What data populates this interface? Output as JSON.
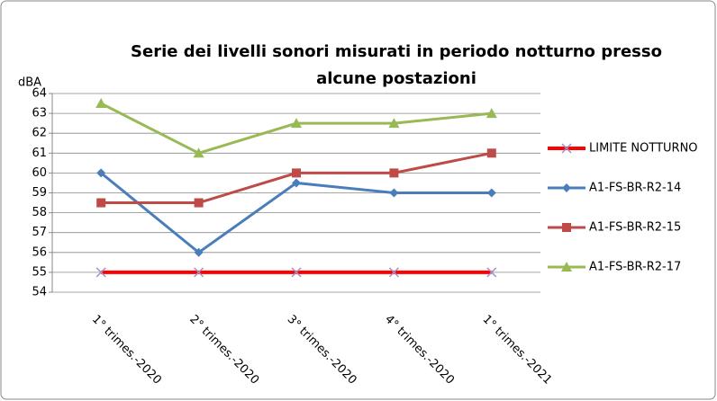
{
  "chart_data": {
    "type": "line",
    "title_lines": [
      "Serie dei livelli sonori misurati in periodo notturno presso",
      "alcune postazioni"
    ],
    "y_label": "dBA",
    "categories": [
      "1° trimes.-2020",
      "2° trimes.-2020",
      "3° trimes.-2020",
      "4° trimes.-2020",
      "1° trimes.-2021"
    ],
    "series": [
      {
        "name": "LIMITE NOTTURNO",
        "color": "#ff0000",
        "marker": "x",
        "marker_color": "#9f8fc7",
        "values": [
          55,
          55,
          55,
          55,
          55
        ]
      },
      {
        "name": "A1-FS-BR-R2-14",
        "color": "#4a7ebb",
        "marker": "diamond",
        "values": [
          60,
          56,
          59.5,
          59,
          59
        ]
      },
      {
        "name": "A1-FS-BR-R2-15",
        "color": "#be4b48",
        "marker": "square",
        "values": [
          58.5,
          58.5,
          60,
          60,
          61
        ]
      },
      {
        "name": "A1-FS-BR-R2-17",
        "color": "#98b954",
        "marker": "triangle",
        "values": [
          63.5,
          61,
          62.5,
          62.5,
          63
        ]
      }
    ],
    "ylim": [
      54,
      64
    ],
    "yticks": [
      54,
      55,
      56,
      57,
      58,
      59,
      60,
      61,
      62,
      63,
      64
    ],
    "grid": true,
    "legend": "right"
  }
}
